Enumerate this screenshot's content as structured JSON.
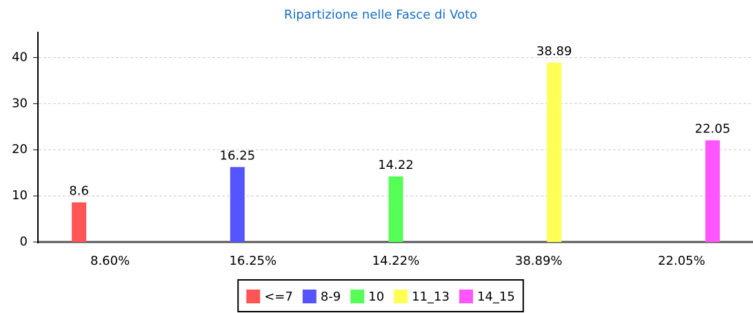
{
  "chart_data": {
    "type": "bar",
    "title": "Ripartizione nelle Fasce di Voto",
    "categories": [
      "8.60%",
      "16.25%",
      "14.22%",
      "38.89%",
      "22.05%"
    ],
    "series": [
      {
        "name": "<=7",
        "color": "#ff5555",
        "values": [
          8.6,
          null,
          null,
          null,
          null
        ]
      },
      {
        "name": "8-9",
        "color": "#5555ff",
        "values": [
          null,
          16.25,
          null,
          null,
          null
        ]
      },
      {
        "name": "10",
        "color": "#55ff55",
        "values": [
          null,
          null,
          14.22,
          null,
          null
        ]
      },
      {
        "name": "11_13",
        "color": "#ffff55",
        "values": [
          null,
          null,
          null,
          38.89,
          null
        ]
      },
      {
        "name": "14_15",
        "color": "#ff55ff",
        "values": [
          null,
          null,
          null,
          null,
          22.05
        ]
      }
    ],
    "ylim": [
      0,
      45
    ],
    "yticks": [
      0,
      10,
      20,
      30,
      40
    ],
    "grid": true,
    "legend": "bottom"
  }
}
